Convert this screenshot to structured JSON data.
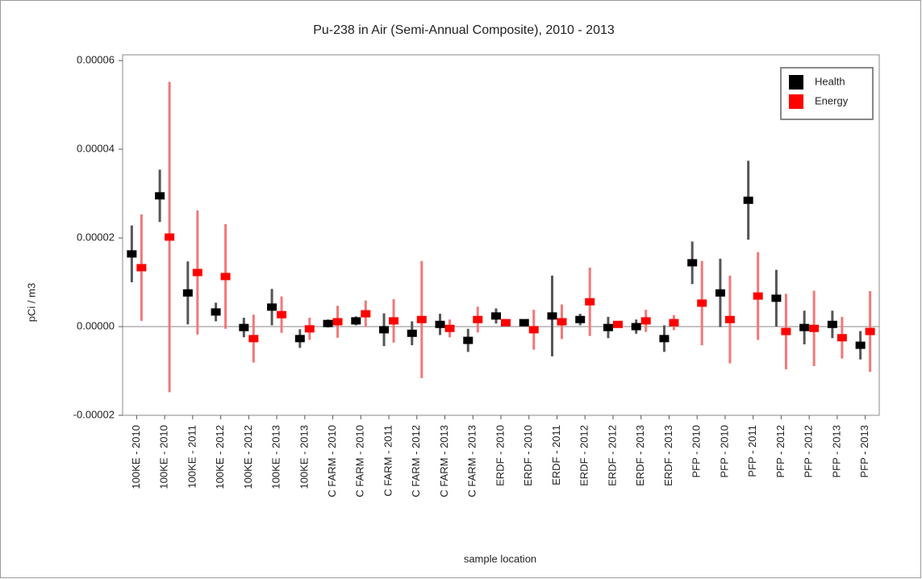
{
  "chart_data": {
    "type": "errorbar",
    "title": "Pu-238 in Air (Semi-Annual Composite), 2010 - 2013",
    "x_label": "sample location",
    "y_label": "pCi / m3",
    "categories": [
      "100KE - 2010",
      "100KE - 2010",
      "100KE - 2011",
      "100KE - 2012",
      "100KE - 2012",
      "100KE - 2013",
      "100KE - 2013",
      "C FARM - 2010",
      "C FARM - 2010",
      "C FARM - 2011",
      "C FARM - 2012",
      "C FARM - 2013",
      "C FARM - 2013",
      "ERDF - 2010",
      "ERDF - 2010",
      "ERDF - 2011",
      "ERDF - 2012",
      "ERDF - 2012",
      "ERDF - 2013",
      "ERDF - 2013",
      "PFP - 2010",
      "PFP - 2010",
      "PFP - 2011",
      "PFP - 2012",
      "PFP - 2012",
      "PFP - 2013",
      "PFP - 2013"
    ],
    "series": [
      {
        "name": "Health",
        "color": "#000000",
        "error_color": "#555555",
        "values": [
          1.64e-05,
          2.95e-05,
          7.6e-06,
          3.3e-06,
          -2e-07,
          4.4e-06,
          -2.7e-06,
          7e-07,
          1.3e-06,
          -7e-07,
          -1.5e-06,
          5e-07,
          -3.1e-06,
          2.4e-06,
          9e-07,
          2.4e-06,
          1.6e-06,
          -2e-07,
          0,
          -2.7e-06,
          1.44e-05,
          7.6e-06,
          2.85e-05,
          6.4e-06,
          -2e-07,
          5e-07,
          -4.2e-06
        ],
        "errors": [
          6.4e-06,
          5.9e-06,
          7.1e-06,
          2.1e-06,
          2.2e-06,
          4.1e-06,
          2.1e-06,
          9e-07,
          1e-06,
          3.7e-06,
          2.7e-06,
          2.4e-06,
          2.6e-06,
          1.7e-06,
          7e-07,
          9.1e-06,
          1.3e-06,
          2.4e-06,
          1.6e-06,
          3e-06,
          4.8e-06,
          7.7e-06,
          8.9e-06,
          6.4e-06,
          3.8e-06,
          3.1e-06,
          3.2e-06
        ]
      },
      {
        "name": "Energy",
        "color": "#ff0000",
        "error_color": "#f27878",
        "values": [
          1.33e-05,
          2.02e-05,
          1.22e-05,
          1.13e-05,
          -2.7e-06,
          2.7e-06,
          -5e-07,
          1.1e-06,
          2.9e-06,
          1.3e-06,
          1.6e-06,
          -4e-07,
          1.6e-06,
          9e-07,
          -7e-07,
          1.1e-06,
          5.6e-06,
          5e-07,
          1.3e-06,
          9e-07,
          5.3e-06,
          1.6e-06,
          6.9e-06,
          -1.1e-06,
          -4e-07,
          -2.5e-06,
          -1.1e-06
        ],
        "errors": [
          1.2e-05,
          3.5e-05,
          1.4e-05,
          1.18e-05,
          5.4e-06,
          4.1e-06,
          2.5e-06,
          3.6e-06,
          3e-06,
          4.9e-06,
          1.32e-05,
          2e-06,
          2.9e-06,
          7e-07,
          4.5e-06,
          3.9e-06,
          7.7e-06,
          7e-07,
          2.5e-06,
          1.7e-06,
          9.5e-06,
          9.9e-06,
          9.9e-06,
          8.5e-06,
          8.5e-06,
          4.7e-06,
          9.1e-06
        ]
      }
    ],
    "ylim": [
      -2e-05,
      6.13e-05
    ],
    "yticks": [
      -2e-05,
      {
        "value": 0,
        "label": "0.00000"
      },
      2e-05,
      4e-05,
      6e-05
    ],
    "zero_line": true,
    "legend": "top-right"
  }
}
